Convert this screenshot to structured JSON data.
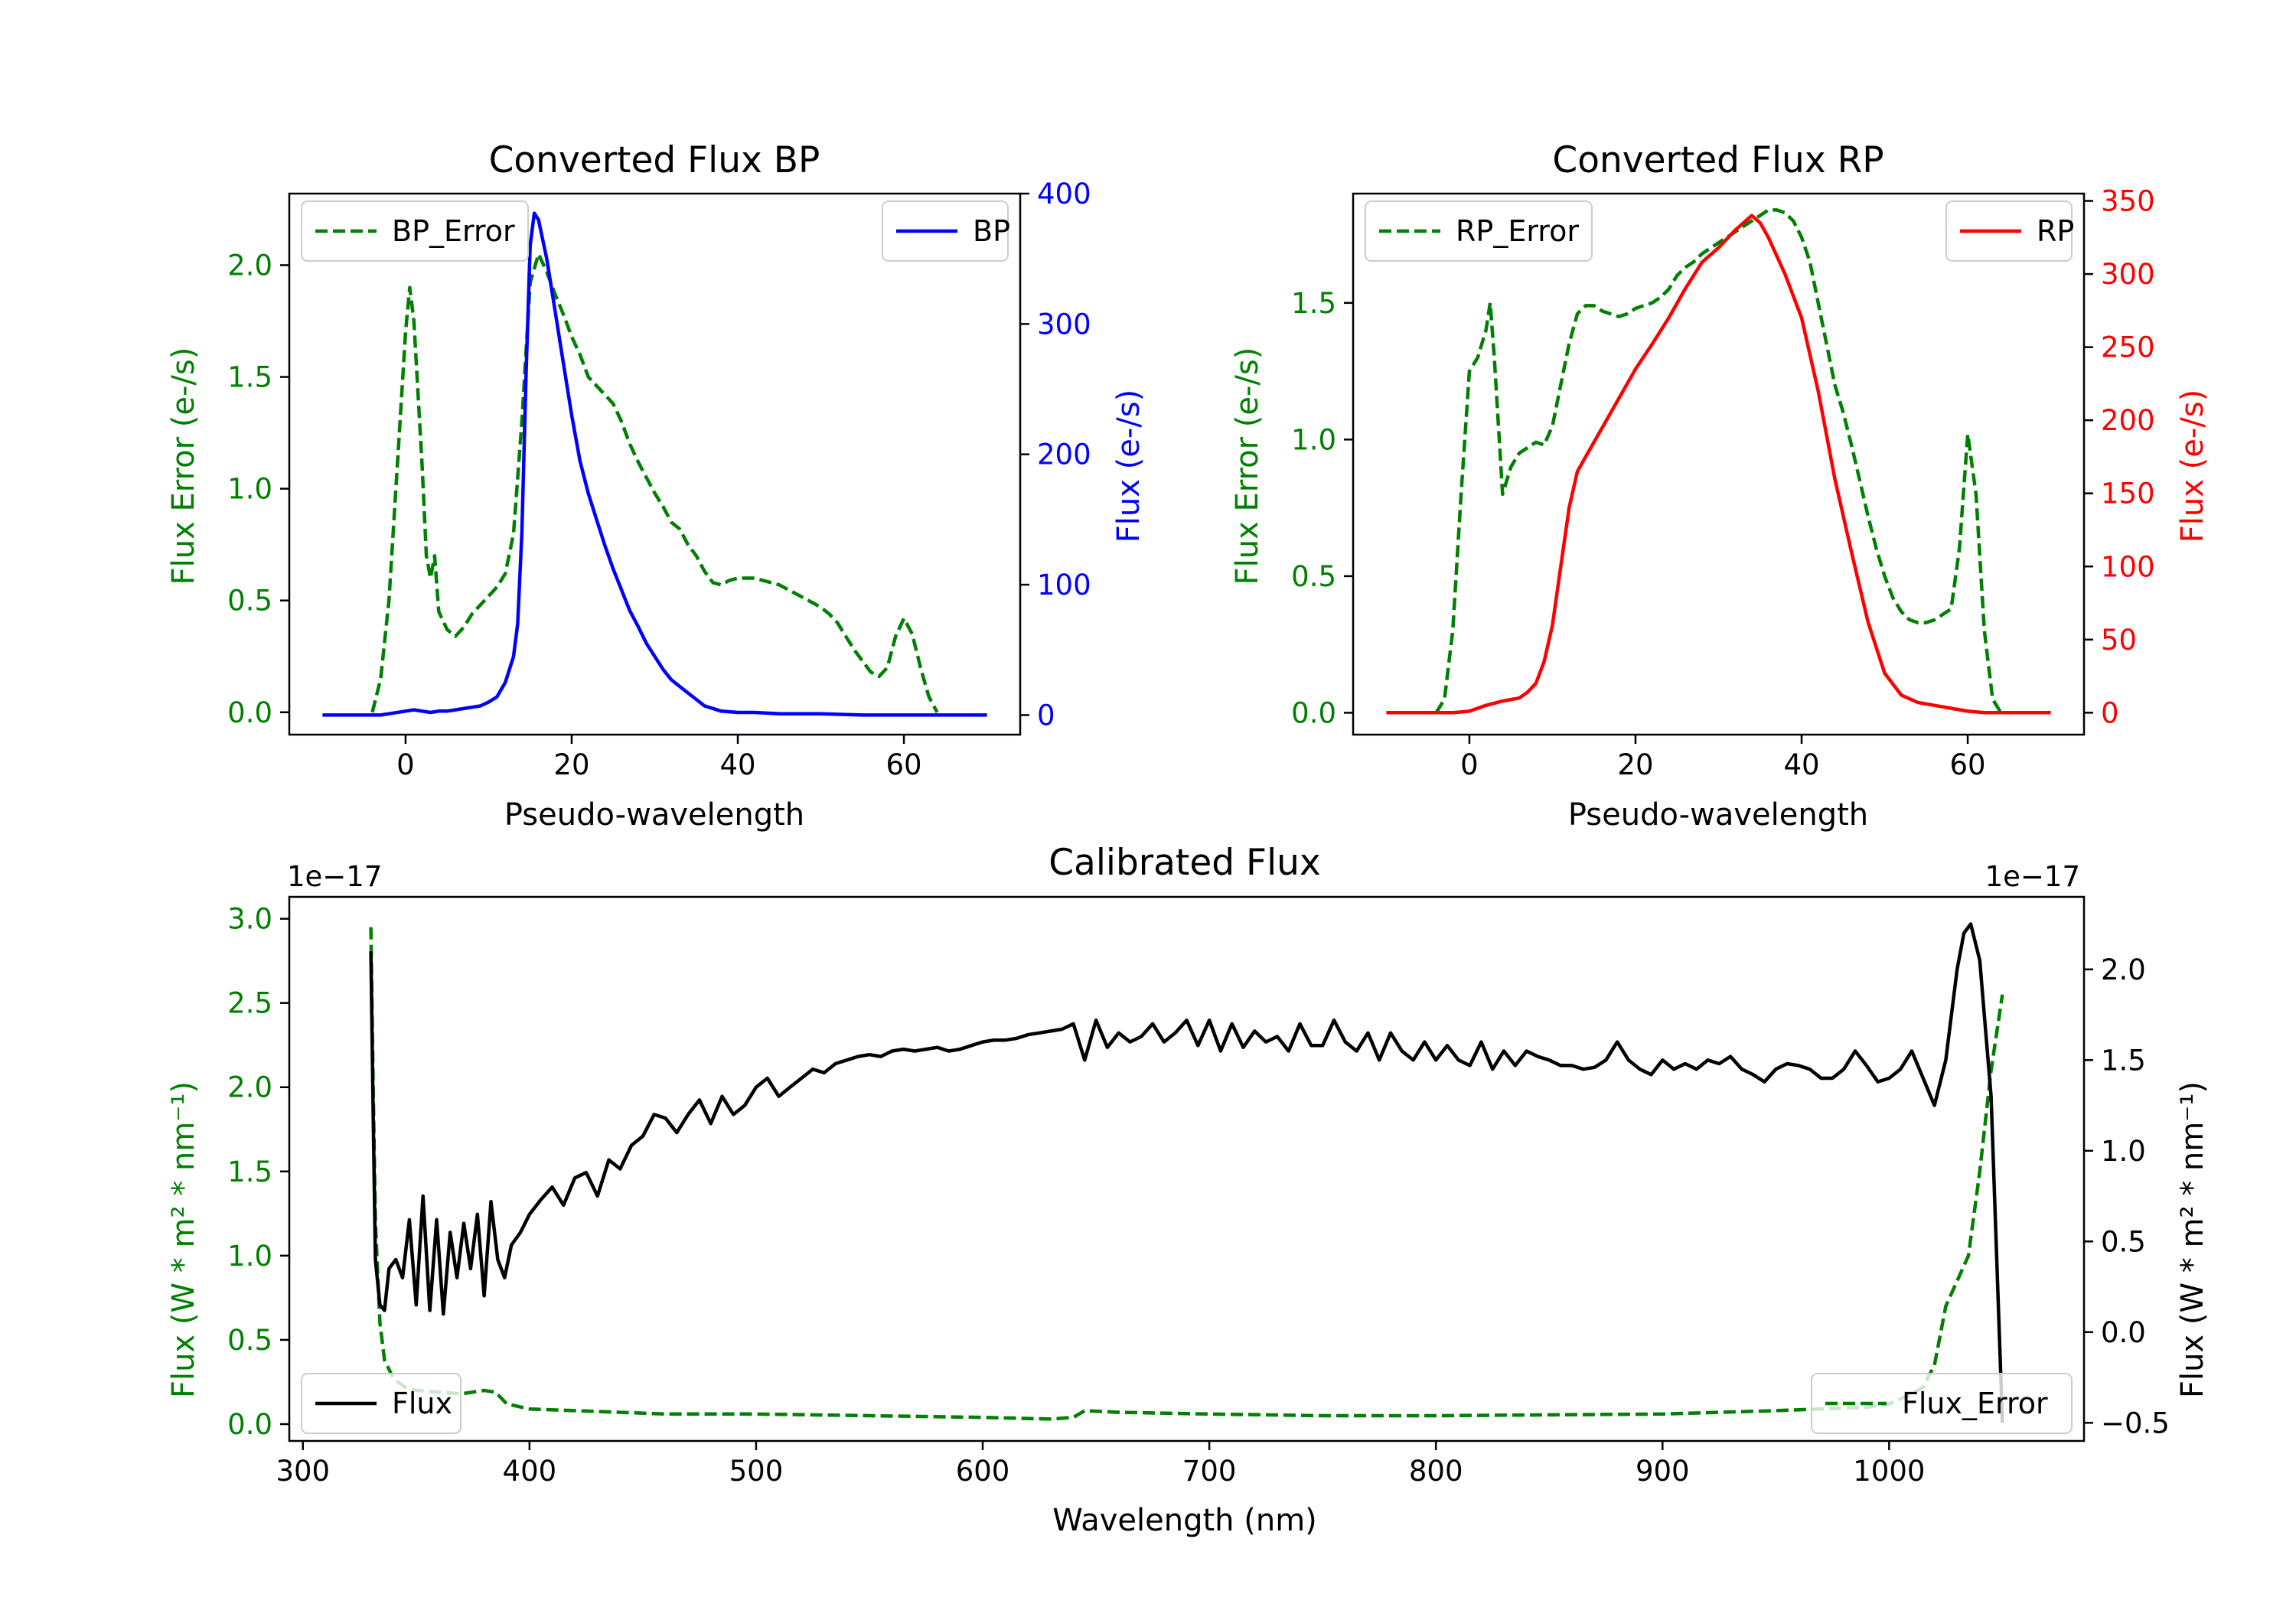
{
  "colors": {
    "bp": "#0000ff",
    "rp": "#ff0000",
    "error": "#008000",
    "flux": "#000000",
    "axis": "#000000",
    "legend_edge": "#cccccc"
  },
  "chart_data": [
    {
      "type": "line",
      "title": "Converted Flux BP",
      "xlabel": "Pseudo-wavelength",
      "ylabel_left": "Flux Error (e-/s)",
      "ylabel_right": "Flux (e-/s)",
      "xlim": [
        -14,
        74
      ],
      "ylim_left": [
        -0.1,
        2.32
      ],
      "ylim_right": [
        -15,
        400
      ],
      "xticks": [
        0,
        20,
        40,
        60
      ],
      "xtick_labels": [
        "0",
        "20",
        "40",
        "60"
      ],
      "yticks_left": [
        0.0,
        0.5,
        1.0,
        1.5,
        2.0
      ],
      "ytick_labels_left": [
        "0.0",
        "0.5",
        "1.0",
        "1.5",
        "2.0"
      ],
      "yticks_right": [
        0,
        100,
        200,
        300,
        400
      ],
      "ytick_labels_right": [
        "0",
        "100",
        "200",
        "300",
        "400"
      ],
      "legend_left": "BP_Error",
      "legend_right": "BP",
      "series": [
        {
          "name": "BP_Error",
          "axis": "left",
          "style": "dashed",
          "color": "error",
          "x": [
            -4,
            -3,
            -2,
            -1,
            0,
            0.5,
            1,
            2,
            2.5,
            3,
            3.5,
            4,
            5,
            6,
            7,
            8,
            9,
            10,
            11,
            12,
            13,
            14,
            15,
            16,
            17,
            18,
            19,
            20,
            21,
            22,
            23,
            24,
            25,
            26,
            27,
            28,
            29,
            30,
            31,
            32,
            33,
            34,
            35,
            36,
            37,
            38,
            39,
            40,
            41,
            42,
            43,
            44,
            45,
            46,
            47,
            48,
            49,
            50,
            51,
            52,
            53,
            54,
            55,
            56,
            57,
            58,
            59,
            60,
            61,
            62,
            63,
            64
          ],
          "y": [
            0.0,
            0.15,
            0.5,
            1.1,
            1.7,
            1.9,
            1.75,
            1.1,
            0.7,
            0.6,
            0.7,
            0.45,
            0.37,
            0.34,
            0.38,
            0.44,
            0.48,
            0.52,
            0.56,
            0.62,
            0.8,
            1.3,
            1.92,
            2.05,
            1.97,
            1.87,
            1.78,
            1.68,
            1.6,
            1.5,
            1.46,
            1.42,
            1.38,
            1.3,
            1.2,
            1.12,
            1.05,
            0.98,
            0.92,
            0.85,
            0.82,
            0.75,
            0.7,
            0.63,
            0.58,
            0.57,
            0.59,
            0.6,
            0.6,
            0.6,
            0.59,
            0.58,
            0.57,
            0.55,
            0.53,
            0.51,
            0.49,
            0.47,
            0.44,
            0.4,
            0.34,
            0.28,
            0.23,
            0.18,
            0.16,
            0.2,
            0.34,
            0.42,
            0.35,
            0.2,
            0.07,
            0.0
          ]
        },
        {
          "name": "BP",
          "axis": "right",
          "style": "solid",
          "color": "bp",
          "x": [
            -10,
            -5,
            -3,
            -2,
            0,
            1,
            2,
            3,
            4,
            5,
            6,
            7,
            8,
            9,
            10,
            11,
            12,
            13,
            13.5,
            14,
            14.5,
            15,
            15.5,
            16,
            17,
            18,
            19,
            20,
            21,
            22,
            23,
            24,
            25,
            26,
            27,
            28,
            29,
            30,
            31,
            32,
            33,
            34,
            35,
            36,
            37,
            38,
            40,
            42,
            45,
            50,
            55,
            60,
            65,
            70
          ],
          "y": [
            0,
            0,
            0,
            1,
            3,
            4,
            3,
            2,
            3,
            3,
            4,
            5,
            6,
            7,
            10,
            14,
            25,
            45,
            70,
            140,
            260,
            360,
            385,
            380,
            350,
            310,
            270,
            230,
            195,
            170,
            150,
            130,
            112,
            96,
            80,
            68,
            55,
            45,
            35,
            27,
            22,
            17,
            12,
            7,
            5,
            3,
            2,
            2,
            1,
            1,
            0,
            0,
            0,
            0
          ]
        }
      ]
    },
    {
      "type": "line",
      "title": "Converted Flux RP",
      "xlabel": "Pseudo-wavelength",
      "ylabel_left": "Flux Error (e-/s)",
      "ylabel_right": "Flux (e-/s)",
      "xlim": [
        -14,
        74
      ],
      "ylim_left": [
        -0.08,
        1.9
      ],
      "ylim_right": [
        -15,
        355
      ],
      "xticks": [
        0,
        20,
        40,
        60
      ],
      "xtick_labels": [
        "0",
        "20",
        "40",
        "60"
      ],
      "yticks_left": [
        0.0,
        0.5,
        1.0,
        1.5
      ],
      "ytick_labels_left": [
        "0.0",
        "0.5",
        "1.0",
        "1.5"
      ],
      "yticks_right": [
        0,
        50,
        100,
        150,
        200,
        250,
        300,
        350
      ],
      "ytick_labels_right": [
        "0",
        "50",
        "100",
        "150",
        "200",
        "250",
        "300",
        "350"
      ],
      "legend_left": "RP_Error",
      "legend_right": "RP",
      "series": [
        {
          "name": "RP_Error",
          "axis": "left",
          "style": "dashed",
          "color": "error",
          "x": [
            -4,
            -3,
            -2,
            -1,
            0,
            1,
            2,
            2.5,
            3,
            4,
            5,
            6,
            7,
            8,
            9,
            10,
            11,
            12,
            13,
            14,
            15,
            16,
            17,
            18,
            19,
            20,
            21,
            22,
            23,
            24,
            25,
            26,
            27,
            28,
            29,
            30,
            31,
            32,
            33,
            34,
            35,
            36,
            37,
            38,
            39,
            40,
            41,
            42,
            43,
            44,
            45,
            46,
            47,
            48,
            49,
            50,
            51,
            52,
            53,
            54,
            55,
            56,
            57,
            58,
            59,
            60,
            61,
            62,
            63,
            64
          ],
          "y": [
            0.0,
            0.05,
            0.3,
            0.8,
            1.25,
            1.3,
            1.4,
            1.5,
            1.3,
            0.8,
            0.9,
            0.95,
            0.97,
            0.99,
            0.98,
            1.05,
            1.2,
            1.35,
            1.46,
            1.49,
            1.49,
            1.47,
            1.46,
            1.45,
            1.46,
            1.48,
            1.49,
            1.5,
            1.52,
            1.55,
            1.6,
            1.63,
            1.65,
            1.68,
            1.7,
            1.72,
            1.74,
            1.76,
            1.78,
            1.8,
            1.82,
            1.84,
            1.84,
            1.83,
            1.8,
            1.74,
            1.65,
            1.5,
            1.35,
            1.2,
            1.1,
            0.98,
            0.85,
            0.72,
            0.6,
            0.5,
            0.42,
            0.37,
            0.34,
            0.33,
            0.33,
            0.34,
            0.36,
            0.38,
            0.6,
            1.02,
            0.8,
            0.3,
            0.05,
            0.0
          ]
        },
        {
          "name": "RP",
          "axis": "right",
          "style": "solid",
          "color": "rp",
          "x": [
            -10,
            -5,
            -2,
            0,
            2,
            4,
            6,
            7,
            8,
            9,
            10,
            11,
            12,
            13,
            14,
            15,
            16,
            18,
            20,
            22,
            24,
            26,
            28,
            30,
            32,
            33,
            34,
            35,
            36,
            38,
            40,
            42,
            44,
            46,
            48,
            50,
            52,
            54,
            56,
            58,
            60,
            62,
            65,
            70
          ],
          "y": [
            0,
            0,
            0,
            1,
            5,
            8,
            10,
            14,
            20,
            35,
            60,
            100,
            140,
            165,
            175,
            185,
            195,
            215,
            235,
            252,
            270,
            290,
            308,
            318,
            330,
            335,
            340,
            335,
            325,
            300,
            270,
            220,
            160,
            110,
            62,
            27,
            12,
            7,
            5,
            3,
            1,
            0,
            0,
            0
          ]
        }
      ]
    },
    {
      "type": "line",
      "title": "Calibrated Flux",
      "xlabel": "Wavelength (nm)",
      "ylabel_left": "Flux (W * m² * nm⁻¹)",
      "ylabel_right": "Flux (W * m² * nm⁻¹)",
      "offset_left": "1e−17",
      "offset_right": "1e−17",
      "xlim": [
        294,
        1086
      ],
      "ylim_left": [
        -0.1,
        3.13
      ],
      "ylim_right": [
        -0.6,
        2.4
      ],
      "xticks": [
        300,
        400,
        500,
        600,
        700,
        800,
        900,
        1000
      ],
      "xtick_labels": [
        "300",
        "400",
        "500",
        "600",
        "700",
        "800",
        "900",
        "1000"
      ],
      "yticks_left": [
        0.0,
        0.5,
        1.0,
        1.5,
        2.0,
        2.5,
        3.0
      ],
      "ytick_labels_left": [
        "0.0",
        "0.5",
        "1.0",
        "1.5",
        "2.0",
        "2.5",
        "3.0"
      ],
      "yticks_right": [
        -0.5,
        0.0,
        0.5,
        1.0,
        1.5,
        2.0
      ],
      "ytick_labels_right": [
        "−0.5",
        "0.0",
        "0.5",
        "1.0",
        "1.5",
        "2.0"
      ],
      "legend_left": "Flux",
      "legend_right": "Flux_Error",
      "series": [
        {
          "name": "Flux_Error",
          "axis": "left",
          "style": "dashed",
          "color": "error",
          "x": [
            330,
            331,
            332,
            334,
            336,
            340,
            345,
            350,
            360,
            370,
            380,
            385,
            390,
            400,
            420,
            440,
            460,
            500,
            550,
            600,
            630,
            640,
            645,
            660,
            700,
            750,
            800,
            900,
            950,
            990,
            1000,
            1010,
            1015,
            1020,
            1025,
            1030,
            1035,
            1040,
            1045,
            1050
          ],
          "y": [
            2.95,
            2.0,
            1.2,
            0.6,
            0.38,
            0.27,
            0.22,
            0.2,
            0.19,
            0.18,
            0.2,
            0.19,
            0.12,
            0.09,
            0.08,
            0.07,
            0.06,
            0.06,
            0.05,
            0.04,
            0.03,
            0.04,
            0.08,
            0.07,
            0.06,
            0.05,
            0.05,
            0.06,
            0.08,
            0.1,
            0.12,
            0.18,
            0.22,
            0.35,
            0.7,
            0.85,
            1.0,
            1.5,
            2.1,
            2.55
          ]
        },
        {
          "name": "Flux",
          "axis": "right",
          "style": "solid",
          "color": "flux",
          "x": [
            330,
            331,
            332,
            334,
            336,
            338,
            341,
            344,
            347,
            350,
            353,
            356,
            359,
            362,
            365,
            368,
            371,
            374,
            377,
            380,
            383,
            386,
            389,
            392,
            396,
            400,
            405,
            410,
            415,
            420,
            425,
            430,
            435,
            440,
            445,
            450,
            455,
            460,
            465,
            470,
            475,
            480,
            485,
            490,
            495,
            500,
            505,
            510,
            515,
            520,
            525,
            530,
            535,
            540,
            545,
            550,
            555,
            560,
            565,
            570,
            575,
            580,
            585,
            590,
            595,
            600,
            605,
            610,
            615,
            620,
            625,
            630,
            635,
            640,
            645,
            650,
            655,
            660,
            665,
            670,
            675,
            680,
            685,
            690,
            695,
            700,
            705,
            710,
            715,
            720,
            725,
            730,
            735,
            740,
            745,
            750,
            755,
            760,
            765,
            770,
            775,
            780,
            785,
            790,
            795,
            800,
            805,
            810,
            815,
            820,
            825,
            830,
            835,
            840,
            845,
            850,
            855,
            860,
            865,
            870,
            875,
            880,
            885,
            890,
            895,
            900,
            905,
            910,
            915,
            920,
            925,
            930,
            935,
            940,
            945,
            950,
            955,
            960,
            965,
            970,
            975,
            980,
            985,
            990,
            995,
            1000,
            1005,
            1010,
            1015,
            1020,
            1025,
            1030,
            1033,
            1036,
            1040,
            1045,
            1050
          ],
          "y": [
            2.1,
            1.2,
            0.4,
            0.15,
            0.12,
            0.35,
            0.4,
            0.3,
            0.62,
            0.15,
            0.75,
            0.12,
            0.62,
            0.1,
            0.55,
            0.3,
            0.6,
            0.35,
            0.65,
            0.2,
            0.72,
            0.4,
            0.3,
            0.48,
            0.55,
            0.65,
            0.73,
            0.8,
            0.7,
            0.85,
            0.88,
            0.75,
            0.95,
            0.9,
            1.03,
            1.08,
            1.2,
            1.18,
            1.1,
            1.2,
            1.28,
            1.15,
            1.3,
            1.2,
            1.25,
            1.35,
            1.4,
            1.3,
            1.35,
            1.4,
            1.45,
            1.43,
            1.48,
            1.5,
            1.52,
            1.53,
            1.52,
            1.55,
            1.56,
            1.55,
            1.56,
            1.57,
            1.55,
            1.56,
            1.58,
            1.6,
            1.61,
            1.61,
            1.62,
            1.64,
            1.65,
            1.66,
            1.67,
            1.7,
            1.5,
            1.72,
            1.57,
            1.65,
            1.6,
            1.63,
            1.7,
            1.6,
            1.65,
            1.72,
            1.58,
            1.72,
            1.55,
            1.7,
            1.57,
            1.66,
            1.6,
            1.63,
            1.55,
            1.7,
            1.58,
            1.58,
            1.72,
            1.6,
            1.55,
            1.65,
            1.5,
            1.65,
            1.55,
            1.5,
            1.6,
            1.5,
            1.58,
            1.5,
            1.47,
            1.6,
            1.45,
            1.55,
            1.47,
            1.55,
            1.52,
            1.5,
            1.47,
            1.47,
            1.45,
            1.46,
            1.5,
            1.6,
            1.5,
            1.45,
            1.42,
            1.5,
            1.45,
            1.48,
            1.45,
            1.5,
            1.48,
            1.52,
            1.45,
            1.42,
            1.38,
            1.45,
            1.48,
            1.47,
            1.45,
            1.4,
            1.4,
            1.45,
            1.55,
            1.47,
            1.38,
            1.4,
            1.45,
            1.55,
            1.4,
            1.25,
            1.5,
            2.0,
            2.2,
            2.25,
            2.05,
            1.3,
            -0.5
          ]
        }
      ]
    }
  ]
}
